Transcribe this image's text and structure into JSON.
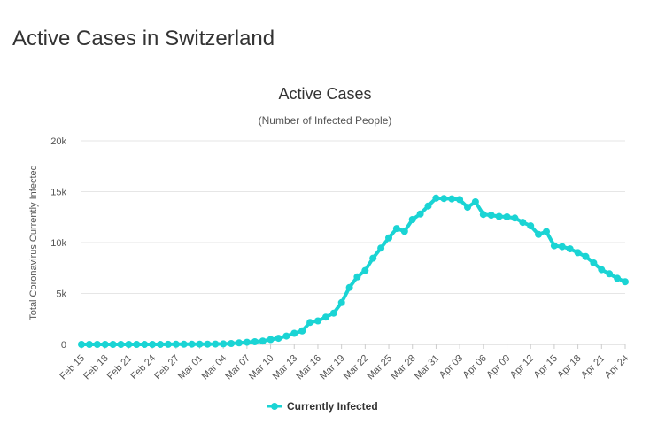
{
  "page": {
    "heading": "Active Cases in Switzerland"
  },
  "colors": {
    "series": "#1ad4d4",
    "grid": "#e6e6e6",
    "axis": "#cccccc",
    "text": "#333333"
  },
  "chart_data": {
    "type": "line",
    "title": "Active Cases",
    "subtitle": "(Number of Infected People)",
    "xlabel": "",
    "ylabel": "Total Coronavirus Currently Infected",
    "ylim": [
      0,
      20000
    ],
    "yticks": [
      0,
      5000,
      10000,
      15000,
      20000
    ],
    "ytick_labels": [
      "0",
      "5k",
      "10k",
      "15k",
      "20k"
    ],
    "grid": true,
    "legend_position": "bottom-center",
    "x_tick_every": 3,
    "x": [
      "Feb 15",
      "Feb 16",
      "Feb 17",
      "Feb 18",
      "Feb 19",
      "Feb 20",
      "Feb 21",
      "Feb 22",
      "Feb 23",
      "Feb 24",
      "Feb 25",
      "Feb 26",
      "Feb 27",
      "Feb 28",
      "Feb 29",
      "Mar 01",
      "Mar 02",
      "Mar 03",
      "Mar 04",
      "Mar 05",
      "Mar 06",
      "Mar 07",
      "Mar 08",
      "Mar 09",
      "Mar 10",
      "Mar 11",
      "Mar 12",
      "Mar 13",
      "Mar 14",
      "Mar 15",
      "Mar 16",
      "Mar 17",
      "Mar 18",
      "Mar 19",
      "Mar 20",
      "Mar 21",
      "Mar 22",
      "Mar 23",
      "Mar 24",
      "Mar 25",
      "Mar 26",
      "Mar 27",
      "Mar 28",
      "Mar 29",
      "Mar 30",
      "Mar 31",
      "Apr 01",
      "Apr 02",
      "Apr 03",
      "Apr 04",
      "Apr 05",
      "Apr 06",
      "Apr 07",
      "Apr 08",
      "Apr 09",
      "Apr 10",
      "Apr 11",
      "Apr 12",
      "Apr 13",
      "Apr 14",
      "Apr 15",
      "Apr 16",
      "Apr 17",
      "Apr 18",
      "Apr 19",
      "Apr 20",
      "Apr 21",
      "Apr 22",
      "Apr 23",
      "Apr 24"
    ],
    "series": [
      {
        "name": "Currently Infected",
        "values": [
          0,
          0,
          0,
          0,
          0,
          0,
          0,
          0,
          0,
          0,
          1,
          8,
          15,
          18,
          24,
          27,
          30,
          37,
          56,
          87,
          148,
          209,
          262,
          329,
          476,
          596,
          818,
          1087,
          1325,
          2160,
          2303,
          2676,
          3073,
          4107,
          5587,
          6624,
          7256,
          8470,
          9465,
          10450,
          11380,
          11108,
          12262,
          12809,
          13587,
          14367,
          14334,
          14293,
          14226,
          13468,
          14002,
          12764,
          12684,
          12567,
          12521,
          12407,
          11995,
          11640,
          10800,
          11078,
          9690,
          9600,
          9380,
          9010,
          8630,
          8000,
          7340,
          6930,
          6490,
          6160
        ]
      }
    ],
    "legend": [
      "Currently Infected"
    ]
  }
}
